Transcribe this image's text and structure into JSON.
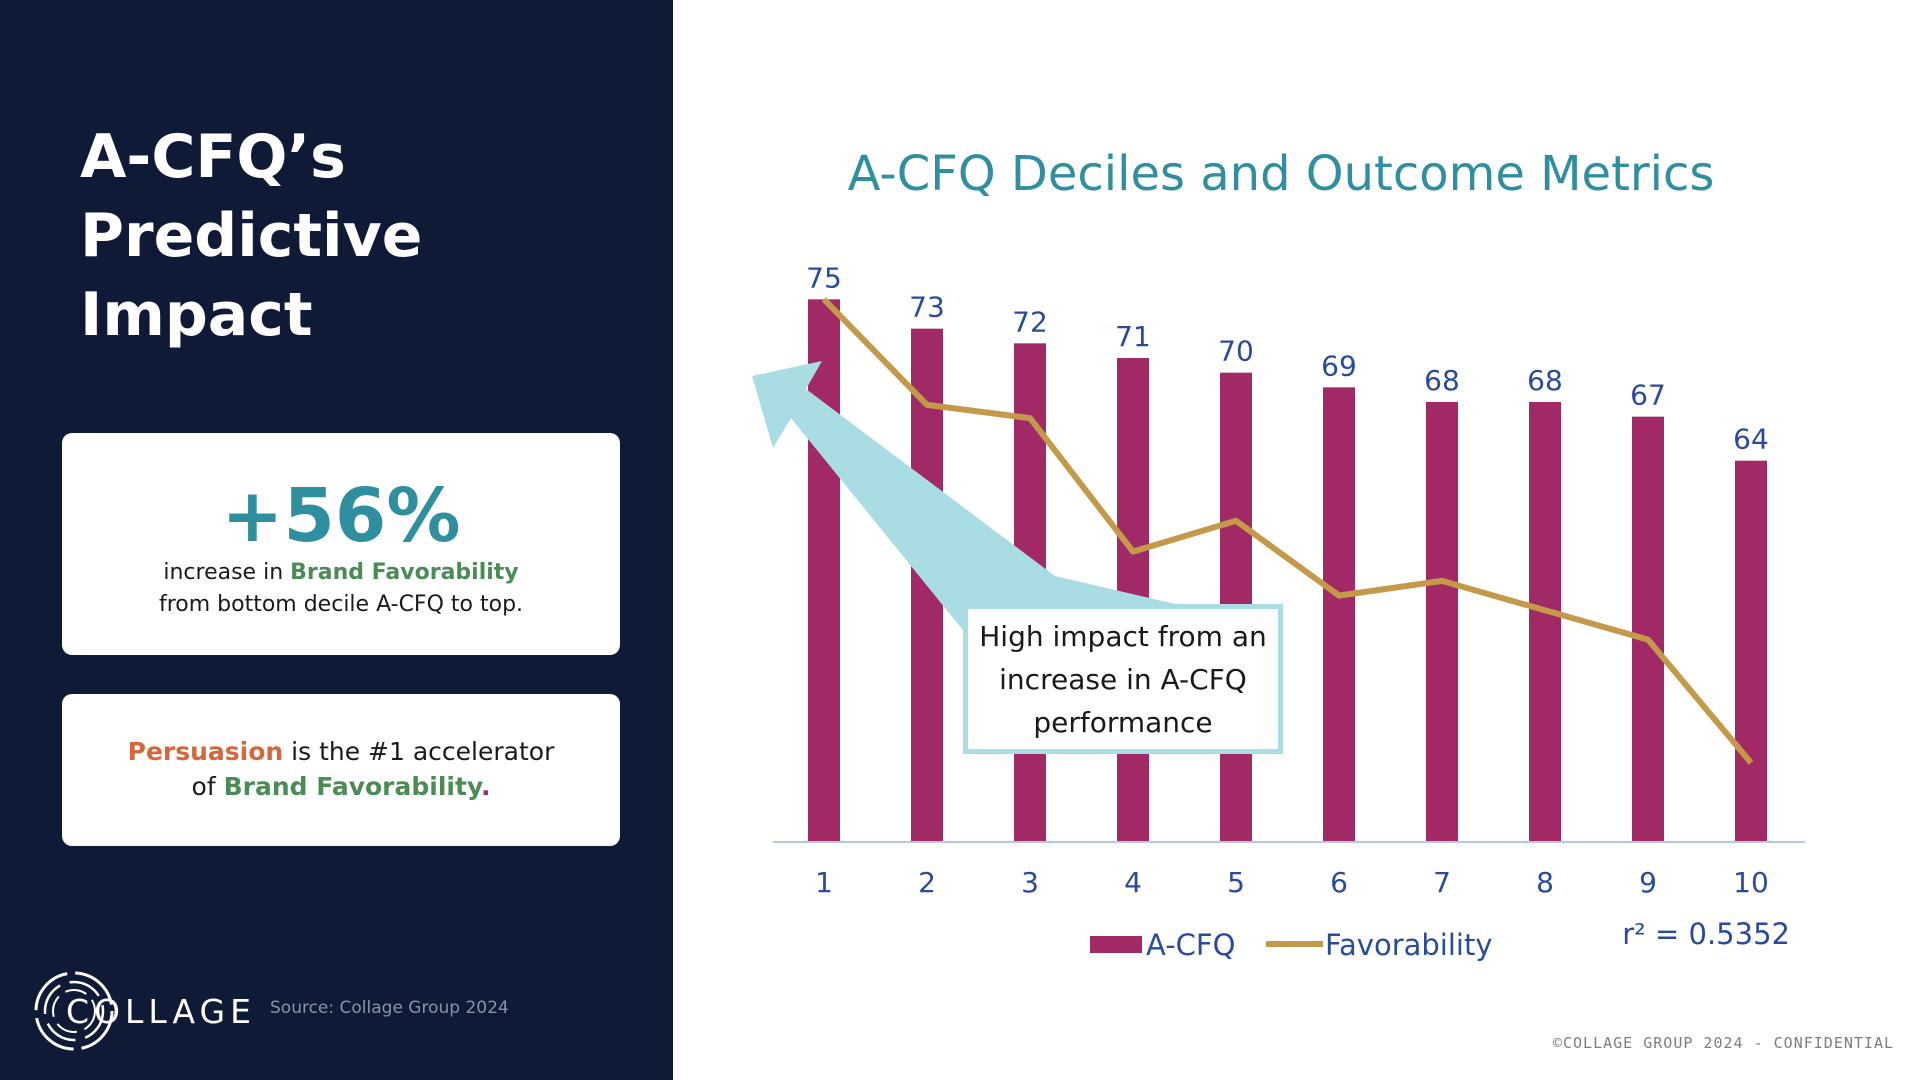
{
  "left_panel": {
    "title": "A-CFQ’s Predictive Impact",
    "stat_card": {
      "value": "+56%",
      "desc_pre": "increase in ",
      "desc_highlight": "Brand Favorability",
      "desc_post": "from bottom decile A-CFQ to top."
    },
    "insight_card": {
      "persuasion": "Persuasion",
      "middle": " is the #1 accelerator",
      "of": "of ",
      "brand": "Brand Favorability",
      "period": "."
    },
    "logo_text": "COLLAGE",
    "source": "Source: Collage Group 2024"
  },
  "footer": "©COLLAGE GROUP 2024 - CONFIDENTIAL",
  "callout": "High impact from an increase in A-CFQ performance",
  "colors": {
    "bar": "#a12a66",
    "line": "#c49a4a",
    "title": "#2f8f9f",
    "axis_text": "#2a4a9a",
    "arrow": "#a9dde3",
    "panel": "#0f1b36"
  },
  "chart_data": {
    "type": "bar",
    "title": "A-CFQ Deciles and Outcome Metrics",
    "categories": [
      "1",
      "2",
      "3",
      "4",
      "5",
      "6",
      "7",
      "8",
      "9",
      "10"
    ],
    "series": [
      {
        "name": "A-CFQ",
        "type": "bar",
        "values": [
          75,
          73,
          72,
          71,
          70,
          69,
          68,
          68,
          67,
          64
        ]
      },
      {
        "name": "Favorability",
        "type": "line",
        "values": [
          75,
          67.8,
          66.9,
          57.8,
          59.9,
          54.8,
          55.8,
          53.8,
          51.8,
          43.4
        ]
      }
    ],
    "data_labels": [
      "75",
      "73",
      "72",
      "71",
      "70",
      "69",
      "68",
      "68",
      "67",
      "64"
    ],
    "ylim": [
      38,
      77
    ],
    "annotation": "r² = 0.5352",
    "legend_position": "bottom"
  }
}
